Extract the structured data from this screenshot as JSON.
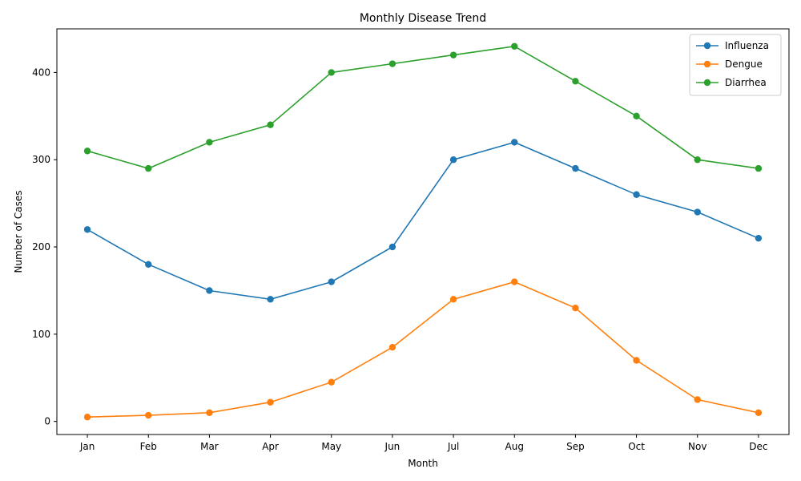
{
  "chart_data": {
    "type": "line",
    "title": "Monthly Disease Trend",
    "xlabel": "Month",
    "ylabel": "Number of Cases",
    "categories": [
      "Jan",
      "Feb",
      "Mar",
      "Apr",
      "May",
      "Jun",
      "Jul",
      "Aug",
      "Sep",
      "Oct",
      "Nov",
      "Dec"
    ],
    "ylim": [
      -15,
      450
    ],
    "yticks": [
      0,
      100,
      200,
      300,
      400
    ],
    "grid": false,
    "legend_position": "top-right",
    "series": [
      {
        "name": "Influenza",
        "color": "#1f77b4",
        "marker": "circle",
        "values": [
          220,
          180,
          150,
          140,
          160,
          200,
          300,
          320,
          290,
          260,
          240,
          210
        ]
      },
      {
        "name": "Dengue",
        "color": "#ff7f0e",
        "marker": "circle",
        "values": [
          5,
          7,
          10,
          22,
          45,
          85,
          140,
          160,
          130,
          70,
          25,
          10
        ]
      },
      {
        "name": "Diarrhea",
        "color": "#2ca02c",
        "marker": "circle",
        "values": [
          310,
          290,
          320,
          340,
          400,
          410,
          420,
          430,
          390,
          350,
          300,
          290
        ]
      }
    ]
  }
}
